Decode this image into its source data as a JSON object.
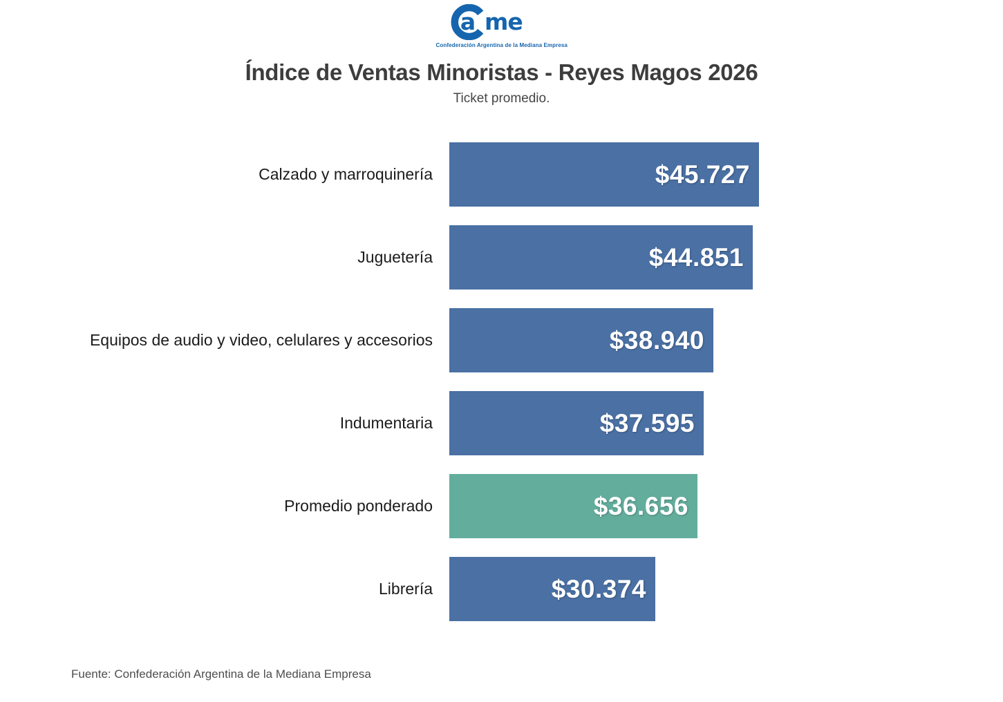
{
  "logo": {
    "text_a": "a",
    "text_me": "me",
    "color": "#1565ae",
    "tagline": "Confederación Argentina de la Mediana Empresa"
  },
  "header": {
    "title": "Índice de Ventas Minoristas - Reyes Magos 2026",
    "subtitle": "Ticket promedio."
  },
  "chart_data": {
    "type": "bar",
    "orientation": "horizontal",
    "title": "Índice de Ventas Minoristas - Reyes Magos 2026",
    "subtitle": "Ticket promedio.",
    "categories": [
      "Calzado y marroquinería",
      "Juguetería",
      "Equipos de audio y video, celulares y accesorios",
      "Indumentaria",
      "Promedio ponderado",
      "Librería"
    ],
    "values": [
      45727,
      44851,
      38940,
      37595,
      36656,
      30374
    ],
    "value_labels": [
      "$45.727",
      "$44.851",
      "$38.940",
      "$37.595",
      "$36.656",
      "$30.374"
    ],
    "xlim": [
      0,
      45727
    ],
    "default_color": "#4a70a4",
    "highlight_color": "#63ad9c",
    "highlight_index": 4,
    "grid": false,
    "legend": false
  },
  "footer": {
    "source": "Fuente: Confederación Argentina de la Mediana Empresa"
  }
}
